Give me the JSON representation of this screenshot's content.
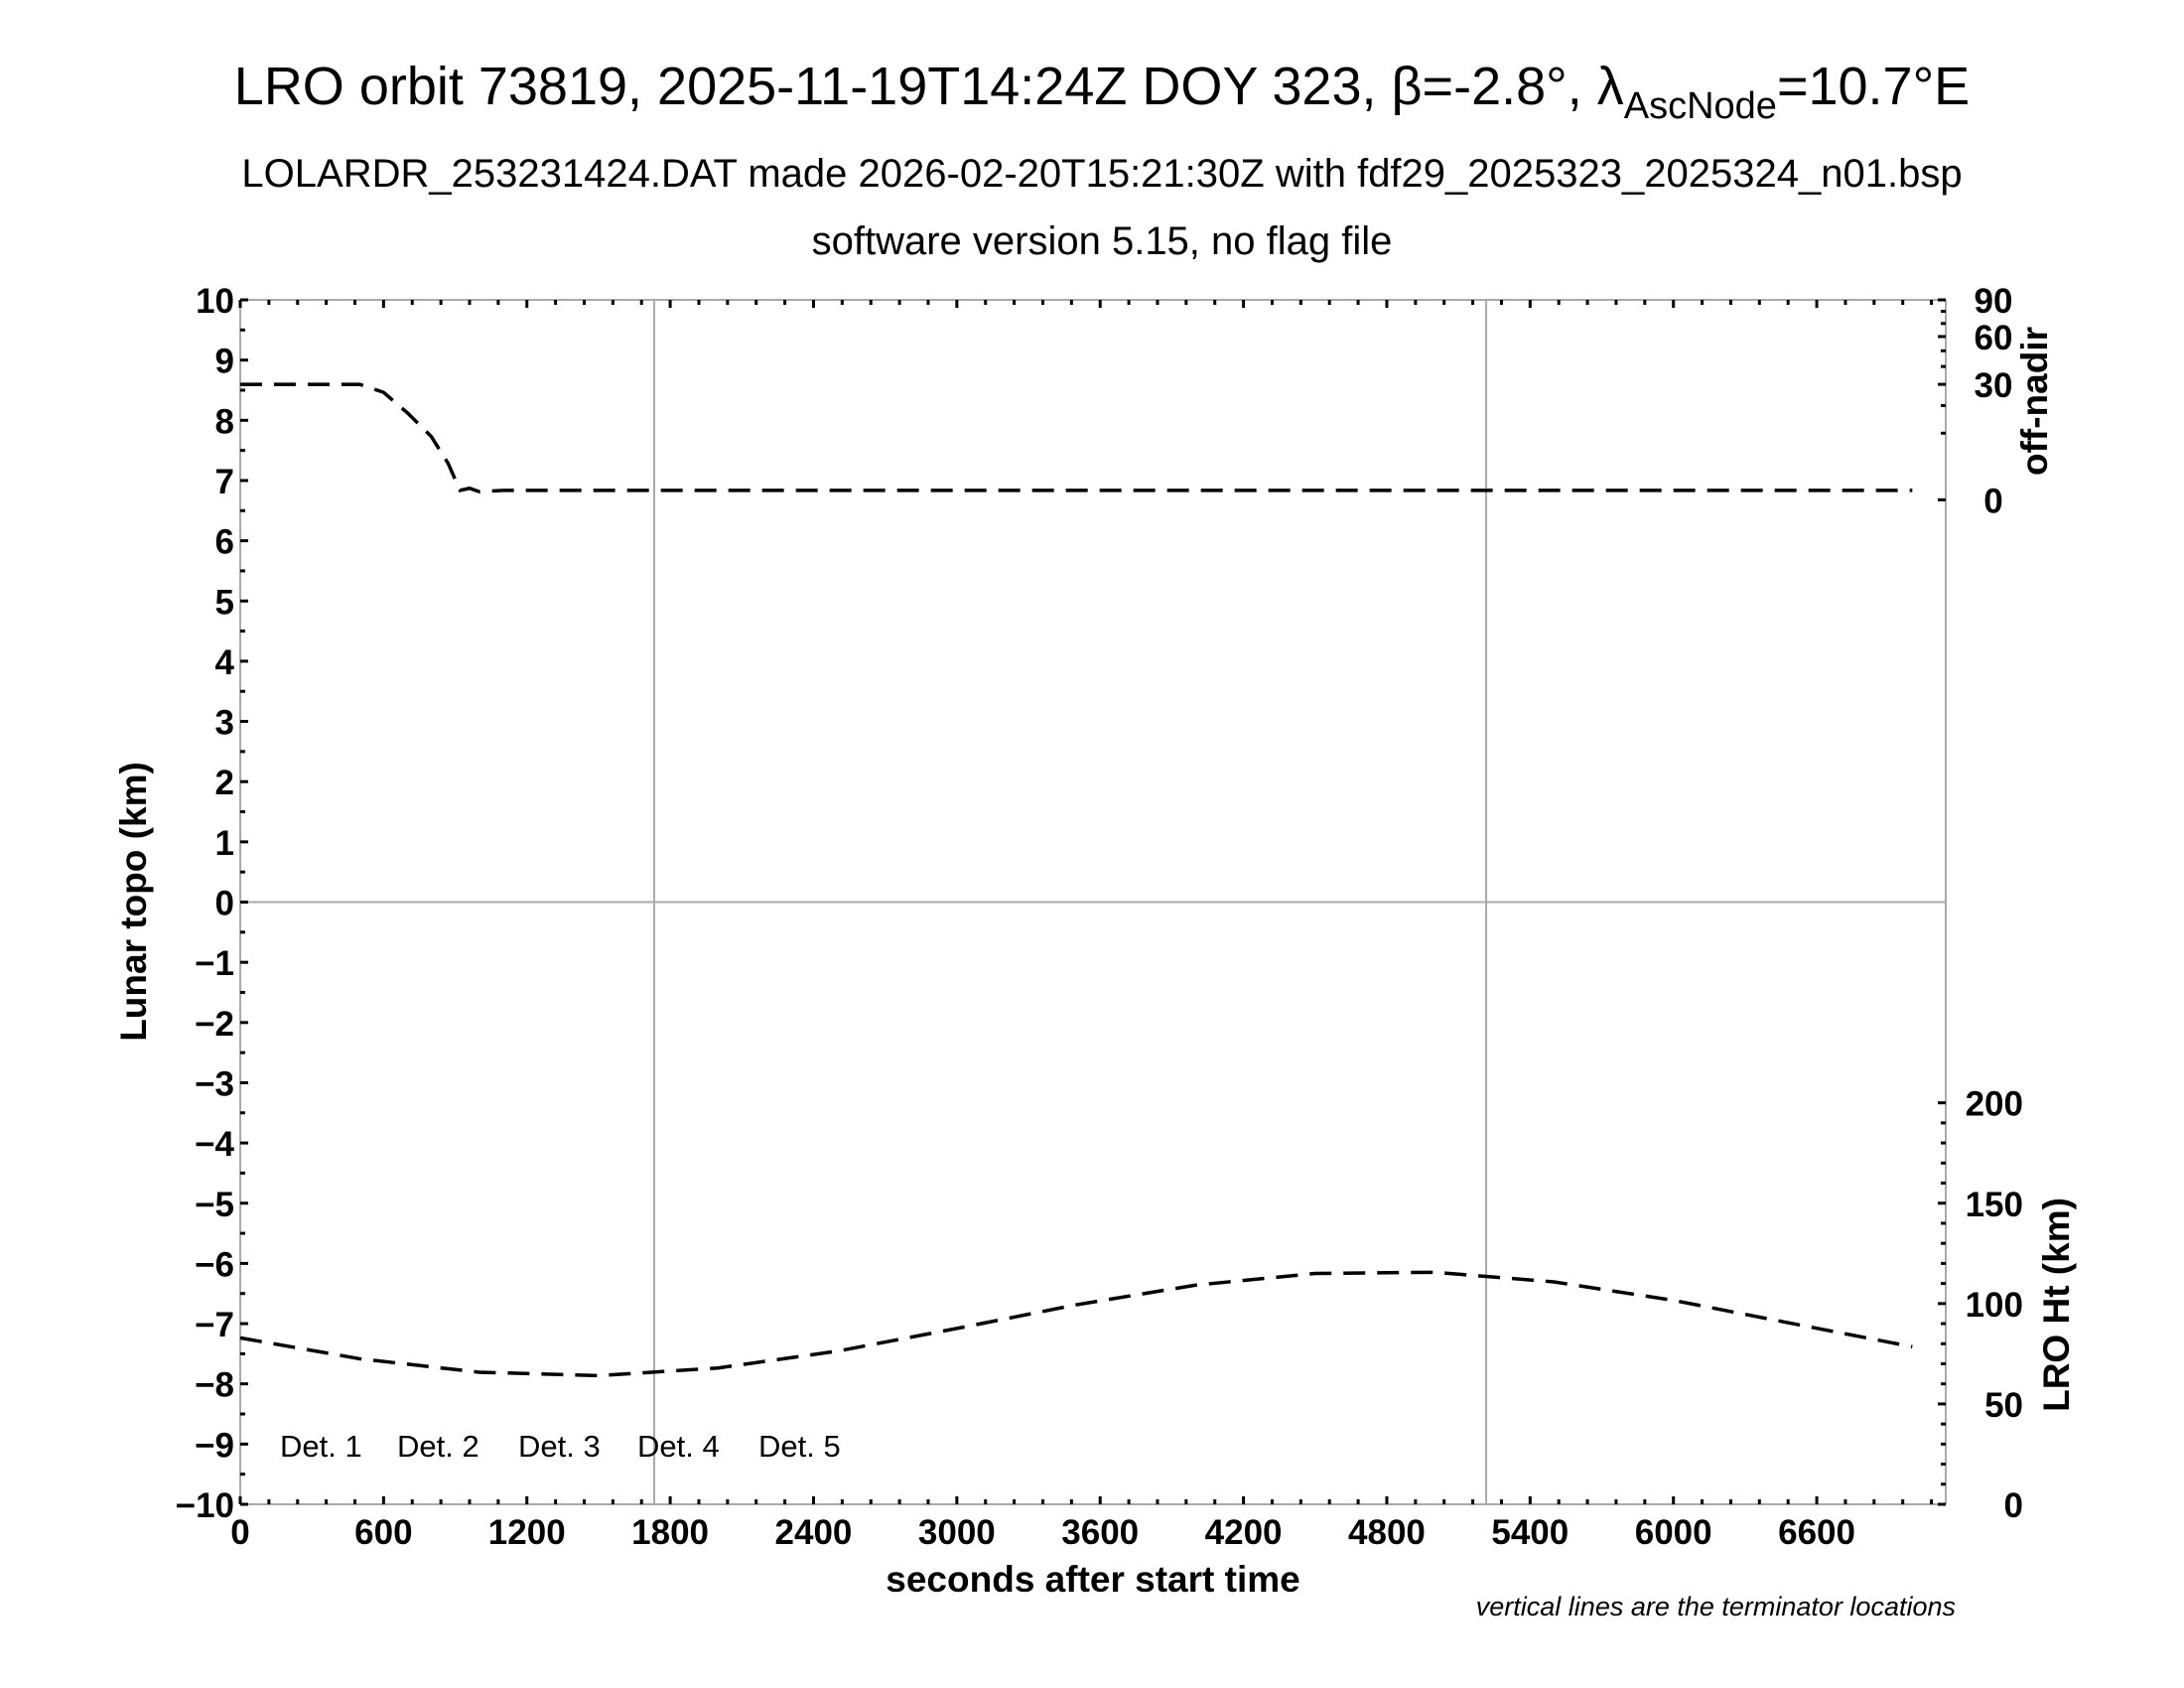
{
  "chart_data": {
    "type": "line",
    "title_main": "LRO orbit 73819, 2025-11-19T14:24Z DOY 323, β=-2.8°, λ",
    "title_sub": "AscNode",
    "title_end": "=10.7°E",
    "subtitle1": "LOLARDR_253231424.DAT made 2026-02-20T15:21:30Z with fdf29_2025323_2025324_n01.bsp",
    "subtitle2": "software version 5.15, no flag file",
    "xlabel": "seconds after start time",
    "ylabel": "Lunar topo (km)",
    "y2label_top": "off-nadir",
    "y2label_bottom": "LRO Ht (km)",
    "footnote": "vertical lines are the terminator locations",
    "xlim": [
      0,
      7140
    ],
    "ylim": [
      -10,
      10
    ],
    "xticks": [
      "0",
      "600",
      "1200",
      "1800",
      "2400",
      "3000",
      "3600",
      "4200",
      "4800",
      "5400",
      "6000",
      "6600"
    ],
    "yticks": [
      "10",
      "9",
      "8",
      "7",
      "6",
      "5",
      "4",
      "3",
      "2",
      "1",
      "0",
      "−1",
      "−2",
      "−3",
      "−4",
      "−5",
      "−6",
      "−7",
      "−8",
      "−9",
      "−10"
    ],
    "offnadir_ticks": [
      "90",
      "60",
      "30",
      "0"
    ],
    "offnadir_scale": "sqrt",
    "height_ticks": [
      "200",
      "150",
      "100",
      "50",
      "0"
    ],
    "height_range": [
      0,
      600
    ],
    "grid": false,
    "terminators": [
      1733,
      5216
    ],
    "legend_placement": "bottom-left",
    "legend": [
      {
        "label": "Det. 1",
        "color": "#000000"
      },
      {
        "label": "Det. 2",
        "color": "#0000ff"
      },
      {
        "label": "Det. 3",
        "color": "#00ff00"
      },
      {
        "label": "Det. 4",
        "color": "#ffa500"
      },
      {
        "label": "Det. 5",
        "color": "#ff0000"
      }
    ],
    "series": [
      {
        "axis": "off-nadir (deg)",
        "x": [
          0,
          500,
          600,
          700,
          800,
          870,
          920,
          960,
          1000,
          1100,
          7000
        ],
        "values": [
          30,
          30,
          26,
          17,
          9,
          3,
          0.2,
          0.3,
          0.15,
          0.2,
          0.2
        ]
      },
      {
        "axis": "LRO Ht (km)",
        "x": [
          0,
          500,
          1000,
          1500,
          2000,
          2500,
          3000,
          3500,
          4000,
          4500,
          5000,
          5500,
          6000,
          6500,
          7000
        ],
        "values": [
          82.9,
          72.5,
          65.8,
          64.1,
          67.9,
          76.3,
          87.6,
          99.4,
          109.2,
          115.0,
          115.6,
          110.8,
          101.6,
          90.0,
          78.5
        ]
      }
    ]
  }
}
